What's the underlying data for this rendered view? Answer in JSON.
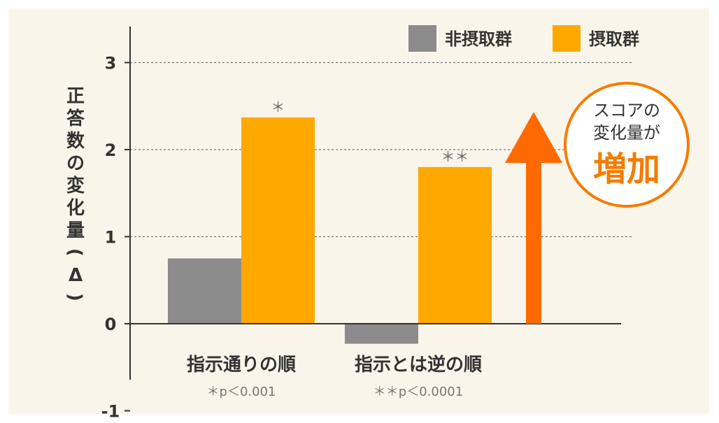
{
  "chart_data": {
    "type": "bar",
    "ylabel": "正答数の変化量(Δ)",
    "ylim": [
      -1,
      3
    ],
    "yticks": [
      "-1",
      "0",
      "1",
      "2",
      "3"
    ],
    "grid": "dashed horizontal at 1, 2, 3",
    "legend_position": "top-right",
    "categories": [
      {
        "label": "指示通りの順",
        "note": "＊p＜0.001"
      },
      {
        "label": "指示とは逆の順",
        "note": "＊＊p＜0.0001"
      }
    ],
    "series": [
      {
        "name": "非摂取群",
        "color": "#8c8c8c",
        "values": [
          0.75,
          -0.23
        ],
        "marks": [
          "",
          ""
        ]
      },
      {
        "name": "摂取群",
        "color": "#ffa800",
        "values": [
          2.37,
          1.8
        ],
        "marks": [
          "＊",
          "＊＊"
        ]
      }
    ]
  },
  "callout": {
    "line1": "スコアの",
    "line2": "変化量が",
    "emphasis": "増加",
    "color": "#f57c00"
  },
  "colors": {
    "background": "#faf5ea",
    "arrow": "#ff6a00",
    "axis": "#333333"
  }
}
